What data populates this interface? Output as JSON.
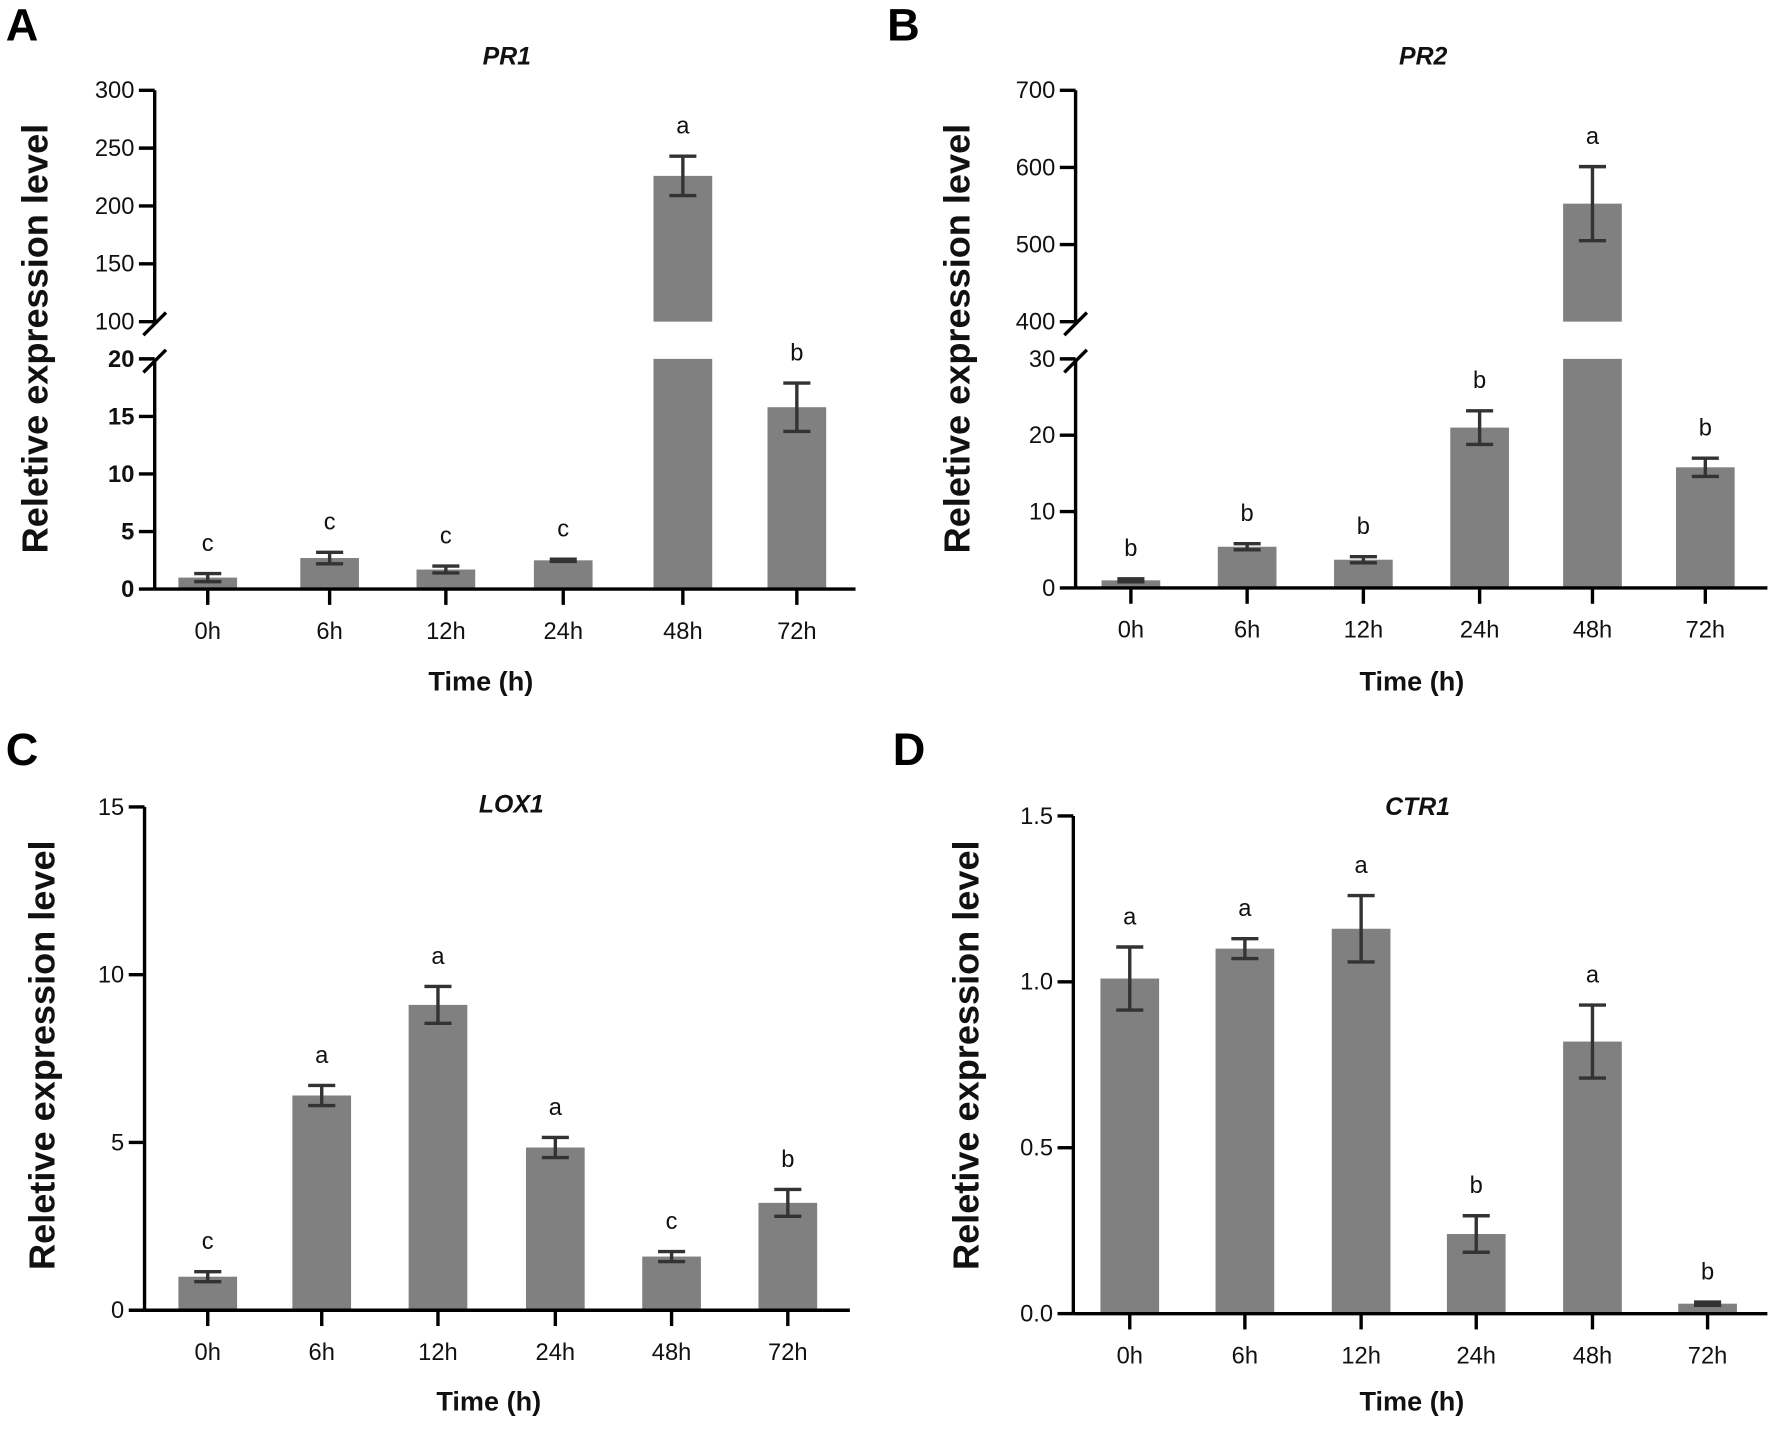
{
  "colors": {
    "bar": "#808080",
    "error": "#333333",
    "axis": "#000000"
  },
  "chart_data": [
    {
      "panel": "A",
      "type": "bar",
      "title": "PR1",
      "xlabel": "Time (h)",
      "ylabel": "Reletive expression level",
      "categories": [
        "0h",
        "6h",
        "12h",
        "24h",
        "48h",
        "72h"
      ],
      "values": [
        1.0,
        2.7,
        1.7,
        2.5,
        226,
        15.8
      ],
      "errors": [
        0.35,
        0.5,
        0.3,
        0.1,
        17,
        2.1
      ],
      "significance": [
        "c",
        "c",
        "c",
        "c",
        "a",
        "b"
      ],
      "y_segments": [
        [
          0,
          20
        ],
        [
          100,
          300
        ]
      ],
      "yticks": [
        [
          0,
          5,
          10,
          15,
          20
        ],
        [
          100,
          150,
          200,
          250,
          300
        ]
      ]
    },
    {
      "panel": "B",
      "type": "bar",
      "title": "PR2",
      "xlabel": "Time (h)",
      "ylabel": "Reletive expression level",
      "categories": [
        "0h",
        "6h",
        "12h",
        "24h",
        "48h",
        "72h"
      ],
      "values": [
        1.0,
        5.4,
        3.7,
        21.0,
        553,
        15.8
      ],
      "errors": [
        0.2,
        0.4,
        0.4,
        2.2,
        48,
        1.2
      ],
      "significance": [
        "b",
        "b",
        "b",
        "b",
        "a",
        "b"
      ],
      "y_segments": [
        [
          0,
          30
        ],
        [
          400,
          700
        ]
      ],
      "yticks": [
        [
          0,
          10,
          20,
          30
        ],
        [
          400,
          500,
          600,
          700
        ]
      ]
    },
    {
      "panel": "C",
      "type": "bar",
      "title": "LOX1",
      "xlabel": "Time (h)",
      "ylabel": "Reletive expression level",
      "categories": [
        "0h",
        "6h",
        "12h",
        "24h",
        "48h",
        "72h"
      ],
      "values": [
        1.0,
        6.4,
        9.1,
        4.85,
        1.6,
        3.2
      ],
      "errors": [
        0.15,
        0.3,
        0.55,
        0.3,
        0.15,
        0.4
      ],
      "significance": [
        "c",
        "a",
        "a",
        "a",
        "c",
        "b"
      ],
      "y_segments": [
        [
          0,
          15
        ]
      ],
      "yticks": [
        [
          0,
          5,
          10,
          15
        ]
      ]
    },
    {
      "panel": "D",
      "type": "bar",
      "title": "CTR1",
      "xlabel": "Time (h)",
      "ylabel": "Reletive expression level",
      "categories": [
        "0h",
        "6h",
        "12h",
        "24h",
        "48h",
        "72h"
      ],
      "values": [
        1.01,
        1.1,
        1.16,
        0.24,
        0.82,
        0.03
      ],
      "errors": [
        0.095,
        0.03,
        0.1,
        0.055,
        0.11,
        0.005
      ],
      "significance": [
        "a",
        "a",
        "a",
        "b",
        "a",
        "b"
      ],
      "y_segments": [
        [
          0,
          1.5
        ]
      ],
      "yticks": [
        [
          "0.0",
          "0.5",
          "1.0",
          "1.5"
        ]
      ]
    }
  ]
}
